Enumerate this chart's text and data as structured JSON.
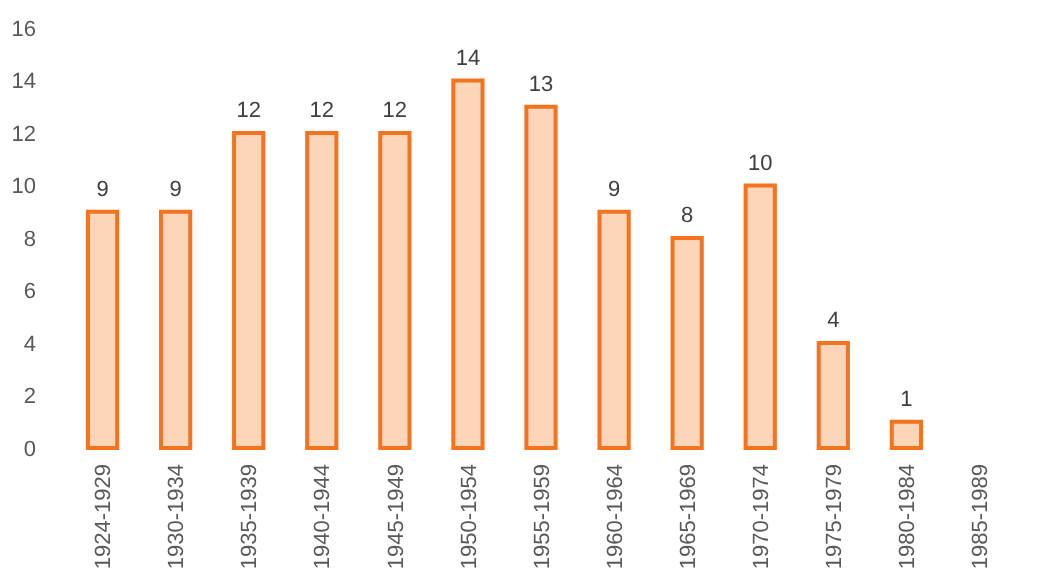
{
  "chart_data": {
    "type": "bar",
    "categories": [
      "1924-1929",
      "1930-1934",
      "1935-1939",
      "1940-1944",
      "1945-1949",
      "1950-1954",
      "1955-1959",
      "1960-1964",
      "1965-1969",
      "1970-1974",
      "1975-1979",
      "1980-1984",
      "1985-1989"
    ],
    "values": [
      9,
      9,
      12,
      12,
      12,
      14,
      13,
      9,
      8,
      10,
      4,
      1,
      null
    ],
    "color": "#f4731f",
    "ylim": [
      0,
      16
    ],
    "yticks": [
      0,
      2,
      4,
      6,
      8,
      10,
      12,
      14,
      16
    ],
    "grid": false,
    "data_labels": true
  }
}
